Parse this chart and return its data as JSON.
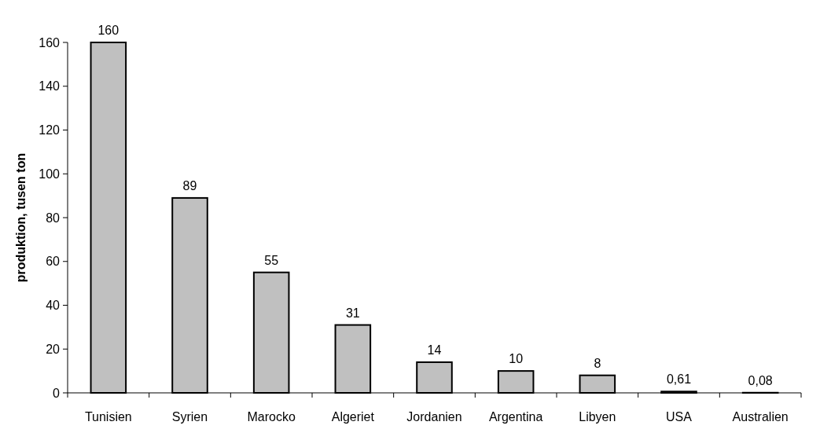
{
  "chart_data": {
    "type": "bar",
    "ylabel": "produktion, tusen ton",
    "categories": [
      "Tunisien",
      "Syrien",
      "Marocko",
      "Algeriet",
      "Jordanien",
      "Argentina",
      "Libyen",
      "USA",
      "Australien"
    ],
    "values": [
      160,
      89,
      55,
      31,
      14,
      10,
      8,
      0.61,
      0.08
    ],
    "value_labels": [
      "160",
      "89",
      "55",
      "31",
      "14",
      "10",
      "8",
      "0,61",
      "0,08"
    ],
    "color": "#c0c0c0",
    "ylim": [
      0,
      160
    ],
    "yticks": [
      0,
      20,
      40,
      60,
      80,
      100,
      120,
      140,
      160
    ]
  }
}
